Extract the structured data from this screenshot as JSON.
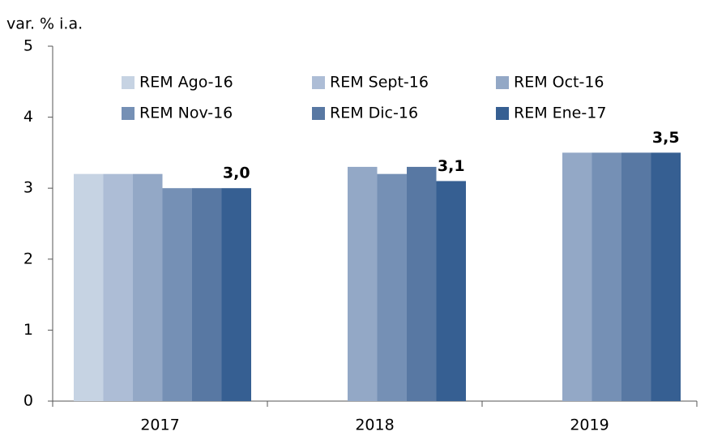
{
  "chart_data": {
    "type": "bar",
    "y_label": "var. % i.a.",
    "categories": [
      "2017",
      "2018",
      "2019"
    ],
    "series": [
      {
        "name": "REM Ago-16",
        "color": "#c6d3e3",
        "values": [
          3.2,
          null,
          null
        ]
      },
      {
        "name": "REM Sept-16",
        "color": "#adbdd6",
        "values": [
          3.2,
          null,
          null
        ]
      },
      {
        "name": "REM Oct-16",
        "color": "#93a8c6",
        "values": [
          3.2,
          3.3,
          3.5
        ]
      },
      {
        "name": "REM Nov-16",
        "color": "#7590b5",
        "values": [
          3.0,
          3.2,
          3.5
        ]
      },
      {
        "name": "REM Dic-16",
        "color": "#5878a3",
        "values": [
          3.0,
          3.3,
          3.5
        ]
      },
      {
        "name": "REM Ene-17",
        "color": "#365f92",
        "values": [
          3.0,
          3.1,
          3.5
        ],
        "value_labels": [
          "3,0",
          "3,1",
          "3,5"
        ]
      }
    ],
    "ylim": [
      0,
      5
    ],
    "yticks": [
      0,
      1,
      2,
      3,
      4,
      5
    ],
    "grid": false,
    "legend": "top"
  }
}
